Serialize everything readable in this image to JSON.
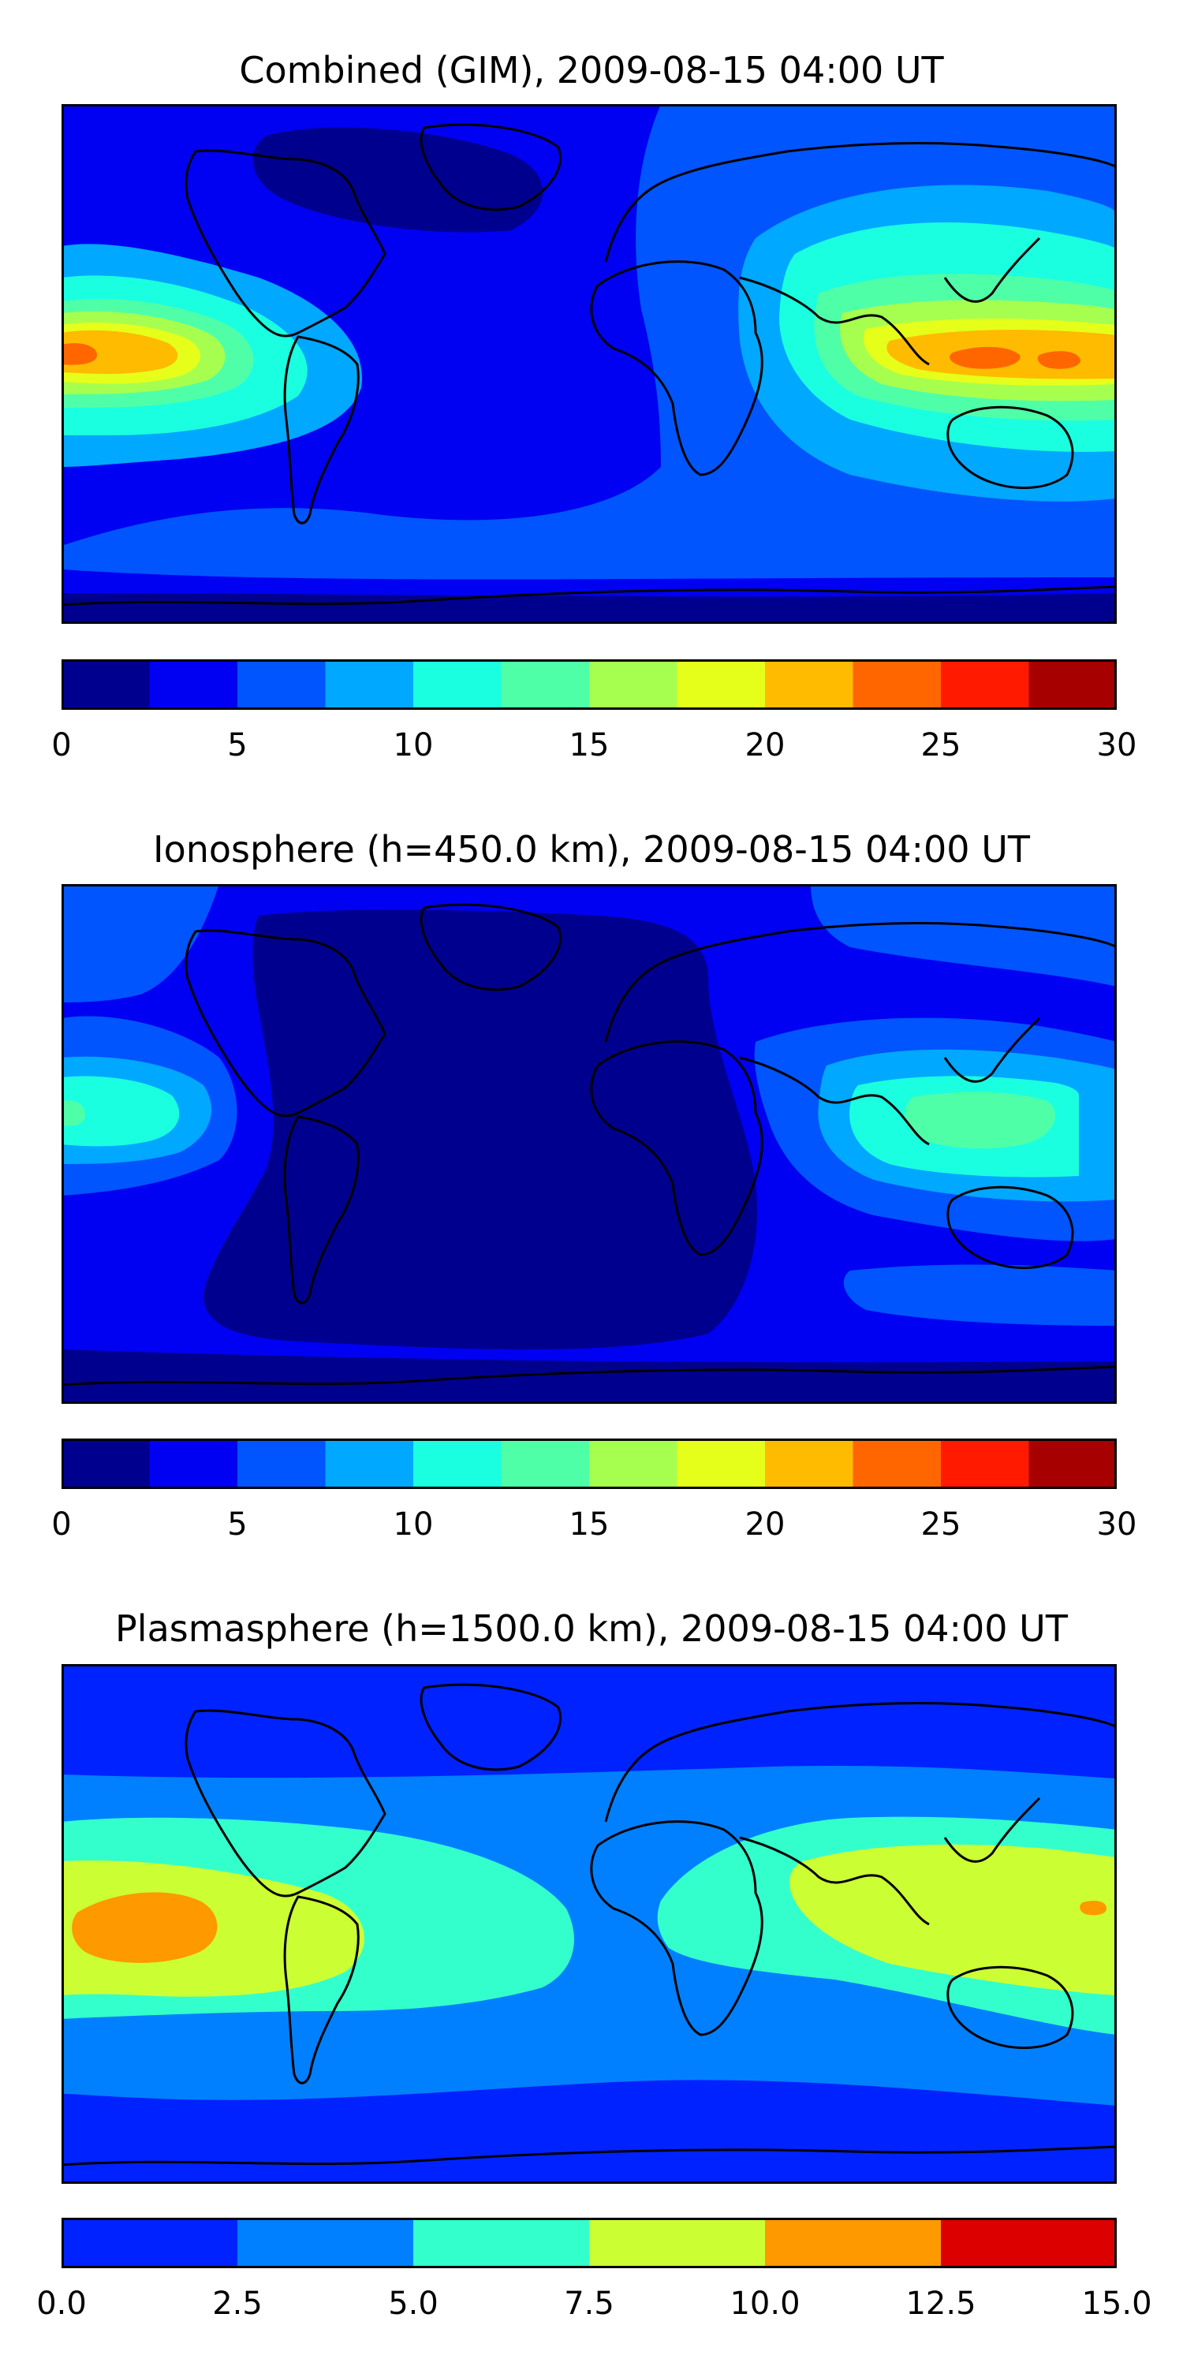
{
  "colors": {
    "c1": "#00008f",
    "c2": "#0000f2",
    "c3": "#0055ff",
    "c4": "#00a8ff",
    "c5": "#1affe0",
    "c6": "#4fffa8",
    "c7": "#a6ff4f",
    "c8": "#e6ff1a",
    "c9": "#ffbb00",
    "c10": "#ff6600",
    "c11": "#ff1a00",
    "c12": "#a60000",
    "p1": "#0022ff",
    "p2": "#0080ff",
    "p3": "#33ffcc",
    "p4": "#ccff33",
    "p5": "#ff9900",
    "p6": "#dd0000",
    "coast": "#000000"
  },
  "panels": [
    {
      "title": "Combined (GIM), 2009-08-15 04:00 UT",
      "colorbar": {
        "ticks": [
          "0",
          "5",
          "10",
          "15",
          "20",
          "25",
          "30"
        ]
      }
    },
    {
      "title": "Ionosphere  (h=450.0 km), 2009-08-15 04:00 UT",
      "colorbar": {
        "ticks": [
          "0",
          "5",
          "10",
          "15",
          "20",
          "25",
          "30"
        ]
      }
    },
    {
      "title": "Plasmasphere (h=1500.0 km), 2009-08-15 04:00 UT",
      "colorbar": {
        "ticks": [
          "0.0",
          "2.5",
          "5.0",
          "7.5",
          "10.0",
          "12.5",
          "15.0"
        ]
      }
    }
  ]
}
